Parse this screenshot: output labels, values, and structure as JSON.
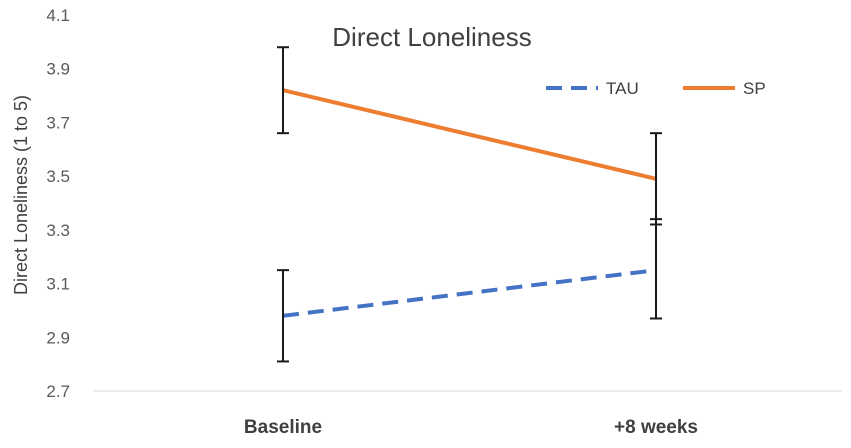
{
  "chart_data": {
    "type": "line",
    "title": "Direct Loneliness",
    "xlabel": "",
    "ylabel": "Direct Loneliness (1 to 5)",
    "categories": [
      "Baseline",
      "+8 weeks"
    ],
    "ylim": [
      2.7,
      4.1
    ],
    "yticks": [
      "2.7",
      "2.9",
      "3.1",
      "3.3",
      "3.5",
      "3.7",
      "3.9",
      "4.1"
    ],
    "grid": false,
    "legend_position": "top-right",
    "series": [
      {
        "name": "TAU",
        "values": [
          2.98,
          3.15
        ],
        "error_low": [
          2.81,
          2.97
        ],
        "error_high": [
          3.15,
          3.34
        ],
        "color": "#4472C4",
        "style": "dashed"
      },
      {
        "name": "SP",
        "values": [
          3.82,
          3.49
        ],
        "error_low": [
          3.66,
          3.32
        ],
        "error_high": [
          3.98,
          3.66
        ],
        "color": "#ED7D31",
        "style": "solid"
      }
    ]
  }
}
